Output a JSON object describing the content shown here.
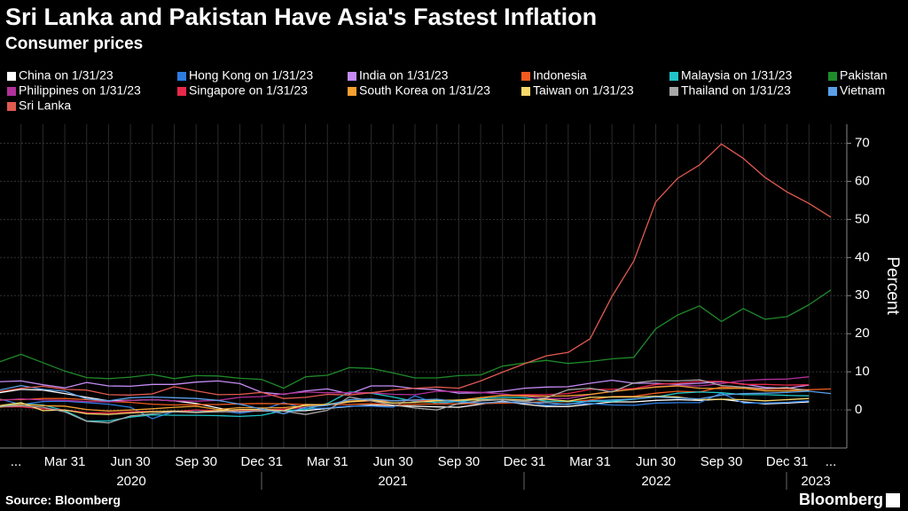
{
  "chart_data": {
    "type": "line",
    "title": "Sri Lanka and Pakistan Have Asia's Fastest Inflation",
    "subtitle": "Consumer prices",
    "y_label": "Percent",
    "source": "Source: Bloomberg",
    "brand": "Bloomberg",
    "categories": [
      "...",
      null,
      null,
      "Mar 31",
      null,
      null,
      "Jun 30",
      null,
      null,
      "Sep 30",
      null,
      null,
      "Dec 31",
      null,
      null,
      "Mar 31",
      null,
      null,
      "Jun 30",
      null,
      null,
      "Sep 30",
      null,
      null,
      "Dec 31",
      null,
      null,
      "Mar 31",
      null,
      null,
      "Jun 30",
      null,
      null,
      "Sep 30",
      null,
      null,
      "Dec 31",
      null,
      "..."
    ],
    "year_labels": [
      "2020",
      "2021",
      "2022",
      "2023"
    ],
    "ylim": [
      -10,
      75
    ],
    "yticks": [
      0,
      10,
      20,
      30,
      40,
      50,
      60,
      70
    ],
    "grid": true,
    "series": [
      {
        "name": "China on 1/31/23",
        "color": "#ffffff",
        "values": [
          4.5,
          5.4,
          5.2,
          4.3,
          3.3,
          2.4,
          2.5,
          2.7,
          2.4,
          1.7,
          0.5,
          -0.5,
          0.2,
          -0.3,
          -0.2,
          0.4,
          0.9,
          1.3,
          1.1,
          1.0,
          0.8,
          0.7,
          1.5,
          2.3,
          1.5,
          0.9,
          0.9,
          1.5,
          2.1,
          2.1,
          2.5,
          2.7,
          2.5,
          2.8,
          2.1,
          1.6,
          1.8,
          2.1,
          null
        ]
      },
      {
        "name": "Hong Kong on 1/31/23",
        "color": "#2d7de0",
        "values": [
          2.9,
          1.4,
          2.2,
          2.3,
          1.9,
          1.5,
          0.7,
          -2.3,
          -0.4,
          -0.2,
          -0.2,
          -0.9,
          0.0,
          1.9,
          0.3,
          0.5,
          1.0,
          1.0,
          0.7,
          3.7,
          1.6,
          2.3,
          1.7,
          1.8,
          2.4,
          1.2,
          1.6,
          1.7,
          1.3,
          1.2,
          1.8,
          1.9,
          1.9,
          4.4,
          1.8,
          1.8,
          2.0,
          2.4,
          null
        ]
      },
      {
        "name": "India on 1/31/23",
        "color": "#c58cf5",
        "values": [
          7.4,
          7.6,
          6.6,
          5.8,
          7.2,
          6.3,
          6.2,
          6.7,
          6.7,
          7.3,
          7.6,
          6.9,
          4.6,
          4.1,
          5.0,
          5.5,
          4.2,
          6.3,
          6.3,
          5.6,
          5.3,
          4.4,
          4.5,
          4.9,
          5.7,
          6.0,
          6.1,
          7.0,
          7.8,
          7.0,
          7.0,
          6.7,
          7.0,
          7.4,
          6.8,
          5.9,
          5.7,
          6.5,
          null
        ]
      },
      {
        "name": "Indonesia",
        "color": "#f05a1e",
        "values": [
          2.7,
          2.7,
          3.0,
          3.0,
          2.7,
          2.2,
          2.0,
          1.5,
          1.3,
          1.4,
          1.4,
          1.6,
          1.7,
          1.6,
          1.4,
          1.4,
          1.4,
          1.7,
          1.3,
          1.5,
          1.6,
          1.6,
          1.7,
          1.8,
          1.9,
          2.2,
          2.1,
          2.6,
          3.5,
          3.6,
          4.4,
          4.9,
          4.7,
          6.0,
          5.7,
          5.4,
          5.5,
          5.3,
          5.5
        ]
      },
      {
        "name": "Malaysia on 1/31/23",
        "color": "#20c4c8",
        "values": [
          1.0,
          1.6,
          1.3,
          -0.2,
          -2.9,
          -2.9,
          -1.9,
          -1.3,
          -1.4,
          -1.4,
          -1.5,
          -1.7,
          -1.4,
          -0.2,
          0.1,
          1.7,
          4.7,
          4.4,
          3.4,
          2.2,
          2.0,
          2.2,
          2.9,
          3.3,
          3.2,
          2.3,
          2.2,
          2.2,
          2.3,
          2.8,
          3.4,
          4.4,
          4.7,
          4.5,
          4.0,
          4.0,
          3.8,
          3.7,
          null
        ]
      },
      {
        "name": "Pakistan",
        "color": "#1e8a2a",
        "values": [
          12.6,
          14.6,
          12.4,
          10.2,
          8.5,
          8.2,
          8.6,
          9.3,
          8.2,
          9.0,
          8.9,
          8.3,
          8.0,
          5.7,
          8.7,
          9.1,
          11.1,
          10.9,
          9.7,
          8.4,
          8.4,
          9.0,
          9.2,
          11.5,
          12.3,
          13.0,
          12.2,
          12.7,
          13.4,
          13.8,
          21.3,
          24.9,
          27.3,
          23.2,
          26.6,
          23.8,
          24.5,
          27.6,
          31.5
        ]
      },
      {
        "name": "Philippines on 1/31/23",
        "color": "#b2309a",
        "values": [
          2.5,
          2.9,
          2.6,
          2.5,
          2.2,
          2.1,
          2.5,
          2.7,
          2.4,
          2.3,
          2.5,
          3.3,
          3.5,
          4.2,
          4.7,
          4.5,
          4.5,
          4.5,
          4.1,
          4.0,
          4.9,
          4.8,
          4.6,
          4.2,
          3.6,
          3.0,
          3.0,
          4.0,
          4.9,
          5.4,
          6.1,
          6.4,
          6.3,
          6.9,
          7.7,
          8.0,
          8.1,
          8.7,
          null
        ]
      },
      {
        "name": "Singapore on 1/31/23",
        "color": "#e8294a",
        "values": [
          0.8,
          0.8,
          0.3,
          0.0,
          -0.7,
          -0.8,
          -0.5,
          -0.4,
          -0.4,
          0.0,
          -0.2,
          -0.1,
          0.0,
          0.2,
          0.7,
          1.3,
          2.1,
          2.4,
          2.4,
          2.5,
          2.4,
          2.5,
          3.2,
          3.8,
          4.0,
          4.0,
          4.3,
          5.4,
          5.4,
          5.6,
          6.7,
          7.0,
          7.5,
          7.5,
          6.7,
          6.7,
          6.5,
          6.6,
          null
        ]
      },
      {
        "name": "South Korea on 1/31/23",
        "color": "#f5a030",
        "values": [
          0.7,
          1.5,
          1.1,
          1.0,
          0.1,
          -0.3,
          0.0,
          0.3,
          0.7,
          1.0,
          0.1,
          0.6,
          0.5,
          0.6,
          1.1,
          1.5,
          2.3,
          2.6,
          2.4,
          2.6,
          2.6,
          2.5,
          3.2,
          3.8,
          3.7,
          3.6,
          3.7,
          4.1,
          4.8,
          5.4,
          6.0,
          6.3,
          5.7,
          5.6,
          5.7,
          5.0,
          5.0,
          5.2,
          null
        ]
      },
      {
        "name": "Taiwan on 1/31/23",
        "color": "#f8d86a",
        "values": [
          1.1,
          1.9,
          -0.2,
          0.0,
          -1.0,
          -1.2,
          -0.8,
          -0.5,
          -0.3,
          -0.6,
          -0.2,
          0.1,
          0.1,
          -0.2,
          1.4,
          1.3,
          2.1,
          2.5,
          1.8,
          2.0,
          2.4,
          2.6,
          2.6,
          2.8,
          2.6,
          2.8,
          2.3,
          3.3,
          3.4,
          3.4,
          3.6,
          3.4,
          2.7,
          2.8,
          2.7,
          2.4,
          2.7,
          3.0,
          null
        ]
      },
      {
        "name": "Thailand on 1/31/23",
        "color": "#a8a8a8",
        "values": [
          0.9,
          1.1,
          0.7,
          -0.5,
          -3.0,
          -3.4,
          -1.6,
          -1.0,
          -0.5,
          -0.7,
          -0.5,
          -0.4,
          -0.3,
          -0.3,
          -1.2,
          -0.1,
          3.4,
          2.4,
          1.3,
          0.5,
          0.0,
          1.7,
          2.4,
          2.7,
          2.2,
          3.2,
          5.3,
          5.7,
          4.7,
          7.1,
          7.7,
          7.6,
          7.9,
          6.4,
          6.0,
          5.6,
          5.9,
          5.0,
          null
        ]
      },
      {
        "name": "Vietnam",
        "color": "#5aa0e8",
        "values": [
          5.2,
          6.4,
          5.4,
          4.9,
          2.9,
          2.4,
          3.2,
          3.4,
          3.2,
          3.0,
          2.5,
          1.5,
          0.2,
          -1.0,
          0.7,
          1.2,
          2.7,
          2.9,
          2.4,
          2.6,
          2.8,
          2.1,
          1.8,
          2.1,
          1.8,
          1.9,
          1.4,
          2.4,
          2.6,
          2.9,
          3.4,
          3.1,
          2.9,
          3.9,
          4.3,
          4.4,
          4.6,
          4.9,
          4.3
        ]
      },
      {
        "name": "Sri Lanka",
        "color": "#e05a50",
        "values": [
          4.8,
          5.7,
          6.2,
          5.4,
          5.2,
          4.0,
          3.9,
          4.2,
          6.1,
          5.0,
          4.0,
          4.1,
          4.6,
          3.0,
          3.3,
          4.1,
          3.9,
          4.5,
          5.2,
          5.7,
          6.0,
          5.7,
          7.6,
          9.9,
          12.1,
          14.2,
          15.1,
          18.7,
          29.8,
          39.1,
          54.6,
          60.8,
          64.3,
          69.8,
          66.0,
          61.0,
          57.2,
          54.2,
          50.6
        ]
      }
    ]
  }
}
